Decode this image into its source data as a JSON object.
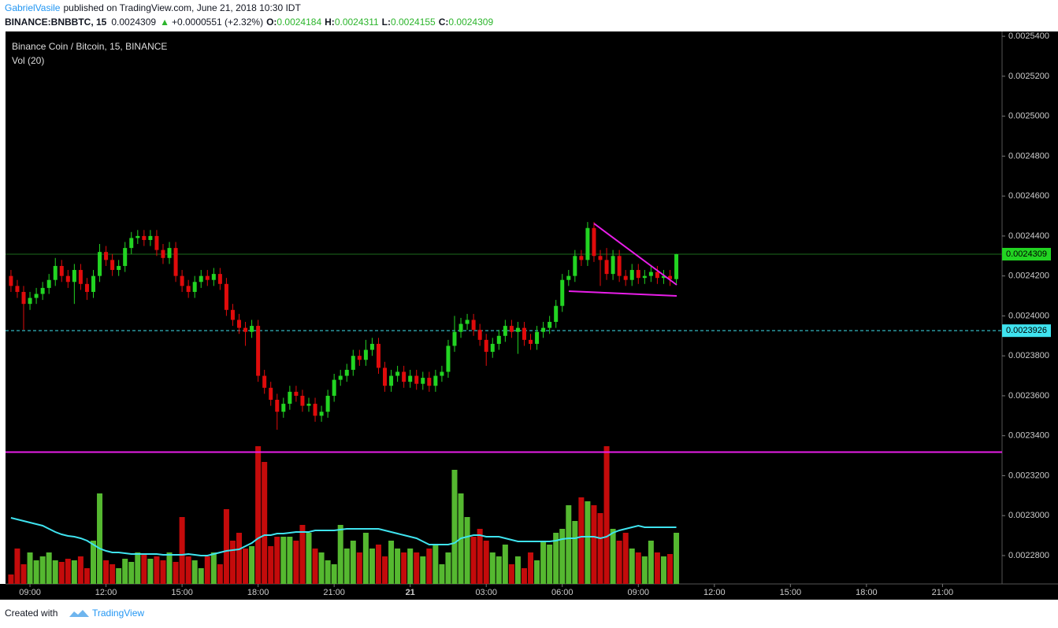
{
  "header": {
    "author": "GabrielVasile",
    "published": "published on TradingView.com, June 21, 2018 10:30 IDT",
    "symbol": "BINANCE:BNBBTC, 15",
    "last": "0.0024309",
    "arrow": "▲",
    "change": "+0.0000551 (+2.32%)",
    "o_label": "O:",
    "o": "0.0024184",
    "h_label": "H:",
    "h": "0.0024311",
    "l_label": "L:",
    "l": "0.0024155",
    "c_label": "C:",
    "c": "0.0024309"
  },
  "footer": {
    "created": "Created with",
    "brand": "TradingView"
  },
  "chart_data": {
    "type": "candlestick",
    "title": "Binance Coin / Bitcoin, 15, BINANCE",
    "volume_label": "Vol (20)",
    "up_color": "#22d422",
    "down_color": "#e00b0b",
    "vol_up_color": "#55b830",
    "vol_down_color": "#c40b0b",
    "ma_color": "#3fe3ef",
    "open": [
      0.00242,
      0.002415,
      0.002412,
      0.002406,
      0.002409,
      0.002411,
      0.002414,
      0.002418,
      0.002425,
      0.00242,
      0.002417,
      0.002423,
      0.002416,
      0.002412,
      0.00242,
      0.002432,
      0.002428,
      0.002423,
      0.002425,
      0.002434,
      0.002439,
      0.00244,
      0.002438,
      0.00244,
      0.002433,
      0.002429,
      0.002434,
      0.00242,
      0.002415,
      0.002412,
      0.002417,
      0.00242,
      0.002418,
      0.002421,
      0.002416,
      0.002403,
      0.002398,
      0.002394,
      0.002392,
      0.002395,
      0.00237,
      0.002364,
      0.002358,
      0.002352,
      0.002356,
      0.002362,
      0.00236,
      0.002355,
      0.002356,
      0.00235,
      0.002352,
      0.00236,
      0.002368,
      0.00237,
      0.002373,
      0.00238,
      0.002378,
      0.002383,
      0.002386,
      0.002374,
      0.002365,
      0.00237,
      0.002372,
      0.002367,
      0.00237,
      0.002366,
      0.002369,
      0.002365,
      0.00237,
      0.002372,
      0.002385,
      0.002392,
      0.002396,
      0.002398,
      0.002393,
      0.002388,
      0.002382,
      0.002386,
      0.00239,
      0.002395,
      0.002392,
      0.002394,
      0.002388,
      0.002386,
      0.002392,
      0.002394,
      0.002397,
      0.002405,
      0.002418,
      0.00242,
      0.00243,
      0.002428,
      0.002444,
      0.00243,
      0.002428,
      0.002421,
      0.00243,
      0.00242,
      0.002418,
      0.002423,
      0.002419,
      0.00242,
      0.002422,
      0.002419,
      0.00242,
      0.0024184
    ],
    "high": [
      0.002423,
      0.002418,
      0.002415,
      0.002412,
      0.002414,
      0.002417,
      0.002421,
      0.002429,
      0.002428,
      0.002423,
      0.002426,
      0.002426,
      0.002419,
      0.002423,
      0.002436,
      0.002435,
      0.002431,
      0.002428,
      0.002437,
      0.002442,
      0.002443,
      0.002443,
      0.002443,
      0.002443,
      0.002436,
      0.002437,
      0.002437,
      0.002423,
      0.002418,
      0.00242,
      0.002423,
      0.002423,
      0.002424,
      0.002424,
      0.002419,
      0.002406,
      0.002401,
      0.002397,
      0.002398,
      0.002398,
      0.002373,
      0.002367,
      0.002361,
      0.002359,
      0.002365,
      0.002365,
      0.002363,
      0.002359,
      0.002359,
      0.002355,
      0.002363,
      0.002371,
      0.002373,
      0.002376,
      0.002383,
      0.002383,
      0.002388,
      0.002389,
      0.002389,
      0.002377,
      0.002373,
      0.002375,
      0.002375,
      0.002373,
      0.002373,
      0.002372,
      0.002372,
      0.002373,
      0.002375,
      0.002388,
      0.0024,
      0.002399,
      0.002401,
      0.002401,
      0.002396,
      0.002391,
      0.002389,
      0.002393,
      0.002398,
      0.002398,
      0.002397,
      0.002397,
      0.002391,
      0.002395,
      0.002397,
      0.0024,
      0.002408,
      0.002421,
      0.002423,
      0.002433,
      0.002433,
      0.002447,
      0.002447,
      0.002433,
      0.002434,
      0.002433,
      0.002433,
      0.002423,
      0.002426,
      0.002426,
      0.002423,
      0.002425,
      0.002425,
      0.002423,
      0.002423,
      0.0024311
    ],
    "low": [
      0.002412,
      0.002409,
      0.002393,
      0.002403,
      0.002406,
      0.002408,
      0.002411,
      0.002415,
      0.002417,
      0.002414,
      0.002406,
      0.002413,
      0.002408,
      0.002409,
      0.002417,
      0.002425,
      0.00242,
      0.00242,
      0.002422,
      0.002431,
      0.002436,
      0.002435,
      0.002435,
      0.00243,
      0.002426,
      0.002426,
      0.002417,
      0.002412,
      0.002409,
      0.002409,
      0.002414,
      0.002415,
      0.002415,
      0.002413,
      0.0024,
      0.002395,
      0.002391,
      0.002385,
      0.002389,
      0.002367,
      0.002361,
      0.002355,
      0.002343,
      0.002349,
      0.002353,
      0.002357,
      0.002352,
      0.002352,
      0.002347,
      0.002347,
      0.002349,
      0.002357,
      0.002365,
      0.002367,
      0.00237,
      0.002375,
      0.002375,
      0.00238,
      0.002371,
      0.002362,
      0.002362,
      0.002367,
      0.002364,
      0.002364,
      0.002363,
      0.002363,
      0.002362,
      0.002362,
      0.002367,
      0.002369,
      0.002382,
      0.002389,
      0.002393,
      0.00239,
      0.002385,
      0.002375,
      0.002379,
      0.002383,
      0.002387,
      0.002389,
      0.002381,
      0.002385,
      0.002383,
      0.002383,
      0.002389,
      0.002391,
      0.002394,
      0.002402,
      0.002415,
      0.002417,
      0.002425,
      0.002425,
      0.002427,
      0.002415,
      0.002418,
      0.002418,
      0.002417,
      0.002415,
      0.002415,
      0.002416,
      0.002416,
      0.002417,
      0.002416,
      0.002416,
      0.002415,
      0.0024155
    ],
    "close": [
      0.002415,
      0.002412,
      0.002406,
      0.002409,
      0.002411,
      0.002414,
      0.002418,
      0.002425,
      0.00242,
      0.002417,
      0.002423,
      0.002416,
      0.002412,
      0.00242,
      0.002432,
      0.002428,
      0.002423,
      0.002425,
      0.002434,
      0.002439,
      0.00244,
      0.002438,
      0.00244,
      0.002433,
      0.002429,
      0.002434,
      0.00242,
      0.002415,
      0.002412,
      0.002417,
      0.00242,
      0.002418,
      0.002421,
      0.002416,
      0.002403,
      0.002398,
      0.002394,
      0.002392,
      0.002395,
      0.00237,
      0.002364,
      0.002358,
      0.002352,
      0.002356,
      0.002362,
      0.00236,
      0.002355,
      0.002356,
      0.00235,
      0.002352,
      0.00236,
      0.002368,
      0.00237,
      0.002373,
      0.00238,
      0.002378,
      0.002383,
      0.002386,
      0.002374,
      0.002365,
      0.00237,
      0.002372,
      0.002367,
      0.00237,
      0.002366,
      0.002369,
      0.002365,
      0.00237,
      0.002372,
      0.002385,
      0.002392,
      0.002396,
      0.002398,
      0.002393,
      0.002388,
      0.002382,
      0.002386,
      0.00239,
      0.002395,
      0.002392,
      0.002394,
      0.002388,
      0.002386,
      0.002392,
      0.002394,
      0.002397,
      0.002405,
      0.002418,
      0.00242,
      0.00243,
      0.002428,
      0.002444,
      0.00243,
      0.002428,
      0.002421,
      0.00243,
      0.00242,
      0.002418,
      0.002423,
      0.002419,
      0.00242,
      0.002422,
      0.002419,
      0.00242,
      0.0024184,
      0.0024309
    ],
    "volume": [
      12,
      45,
      25,
      40,
      30,
      35,
      40,
      30,
      28,
      32,
      30,
      35,
      20,
      55,
      115,
      30,
      25,
      20,
      32,
      28,
      40,
      38,
      32,
      35,
      30,
      40,
      28,
      85,
      35,
      30,
      20,
      35,
      40,
      25,
      95,
      55,
      65,
      45,
      48,
      175,
      155,
      48,
      60,
      60,
      60,
      55,
      75,
      65,
      45,
      40,
      30,
      25,
      75,
      45,
      55,
      40,
      65,
      45,
      50,
      35,
      55,
      45,
      40,
      45,
      40,
      35,
      45,
      50,
      25,
      40,
      145,
      115,
      85,
      60,
      70,
      55,
      40,
      35,
      50,
      25,
      35,
      20,
      40,
      30,
      55,
      50,
      65,
      70,
      100,
      80,
      110,
      105,
      100,
      90,
      175,
      70,
      55,
      65,
      45,
      40,
      35,
      55,
      40,
      35,
      38,
      65
    ],
    "volume_ma": [
      84,
      82,
      80,
      78,
      76,
      74,
      70,
      66,
      63,
      61,
      60,
      58,
      55,
      50,
      45,
      42,
      40,
      40,
      39,
      38,
      38,
      38,
      38,
      38,
      37,
      37,
      37,
      37,
      38,
      37,
      36,
      36,
      38,
      40,
      42,
      43,
      44,
      48,
      52,
      58,
      62,
      62,
      64,
      64,
      65,
      66,
      66,
      66,
      68,
      68,
      68,
      68,
      69,
      70,
      70,
      70,
      70,
      70,
      70,
      68,
      66,
      64,
      62,
      60,
      58,
      54,
      50,
      50,
      50,
      50,
      52,
      58,
      60,
      62,
      62,
      60,
      60,
      60,
      58,
      56,
      54,
      54,
      54,
      54,
      54,
      54,
      55,
      57,
      58,
      58,
      60,
      60,
      60,
      58,
      60,
      65,
      68,
      70,
      72,
      74,
      72,
      72,
      72,
      72,
      72,
      72
    ],
    "ylim": [
      0.0022658,
      0.0025424
    ],
    "vol_ylim": [
      0,
      702
    ],
    "xlim": [
      -0.86,
      156.4
    ],
    "yticks": [
      {
        "value": 0.00254,
        "label": "0.0025400"
      },
      {
        "value": 0.00252,
        "label": "0.0025200"
      },
      {
        "value": 0.0025,
        "label": "0.0025000"
      },
      {
        "value": 0.00248,
        "label": "0.0024800"
      },
      {
        "value": 0.00246,
        "label": "0.0024600"
      },
      {
        "value": 0.00244,
        "label": "0.0024400"
      },
      {
        "value": 0.00242,
        "label": "0.0024200"
      },
      {
        "value": 0.0024,
        "label": "0.0024000"
      },
      {
        "value": 0.00238,
        "label": "0.0023800"
      },
      {
        "value": 0.00236,
        "label": "0.0023600"
      },
      {
        "value": 0.00234,
        "label": "0.0023400"
      },
      {
        "value": 0.00232,
        "label": "0.0023200"
      },
      {
        "value": 0.0023,
        "label": "0.0023000"
      },
      {
        "value": 0.00228,
        "label": "0.0022800"
      }
    ],
    "xticks": [
      {
        "value": 3,
        "label": "09:00"
      },
      {
        "value": 15,
        "label": "12:00"
      },
      {
        "value": 27,
        "label": "15:00"
      },
      {
        "value": 39,
        "label": "18:00"
      },
      {
        "value": 51,
        "label": "21:00"
      },
      {
        "value": 63,
        "label": "21"
      },
      {
        "value": 75,
        "label": "03:00"
      },
      {
        "value": 87,
        "label": "06:00"
      },
      {
        "value": 99,
        "label": "09:00"
      },
      {
        "value": 111,
        "label": "12:00"
      },
      {
        "value": 123,
        "label": "15:00"
      },
      {
        "value": 135,
        "label": "18:00"
      },
      {
        "value": 147,
        "label": "21:00"
      }
    ],
    "hlines": [
      {
        "value": 0.0023926,
        "color": "#3fe3ef",
        "dash": true
      },
      {
        "value": 0.0023318,
        "color": "#e91ee9",
        "dash": false
      }
    ]
  }
}
